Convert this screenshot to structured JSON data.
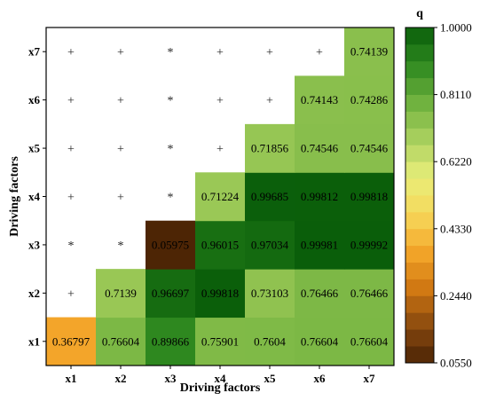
{
  "chart_data": {
    "type": "heatmap",
    "title": "",
    "xlabel": "Driving factors",
    "ylabel": "Driving factors",
    "x_categories": [
      "x1",
      "x2",
      "x3",
      "x4",
      "x5",
      "x6",
      "x7"
    ],
    "y_categories": [
      "x1",
      "x2",
      "x3",
      "x4",
      "x5",
      "x6",
      "x7"
    ],
    "rows": [
      {
        "y": "x1",
        "cells": [
          {
            "label": "0.36797",
            "value": 0.36797
          },
          {
            "label": "0.76604",
            "value": 0.76604
          },
          {
            "label": "0.89866",
            "value": 0.89866
          },
          {
            "label": "0.75901",
            "value": 0.75901
          },
          {
            "label": "0.7604",
            "value": 0.7604
          },
          {
            "label": "0.76604",
            "value": 0.76604
          },
          {
            "label": "0.76604",
            "value": 0.76604
          }
        ]
      },
      {
        "y": "x2",
        "cells": [
          {
            "symbol": "+"
          },
          {
            "label": "0.7139",
            "value": 0.7139
          },
          {
            "label": "0.96697",
            "value": 0.96697
          },
          {
            "label": "0.99818",
            "value": 0.99818
          },
          {
            "label": "0.73103",
            "value": 0.73103
          },
          {
            "label": "0.76466",
            "value": 0.76466
          },
          {
            "label": "0.76466",
            "value": 0.76466
          }
        ]
      },
      {
        "y": "x3",
        "cells": [
          {
            "symbol": "*"
          },
          {
            "symbol": "*"
          },
          {
            "label": "0.05975",
            "value": 0.05975
          },
          {
            "label": "0.96015",
            "value": 0.96015
          },
          {
            "label": "0.97034",
            "value": 0.97034
          },
          {
            "label": "0.99981",
            "value": 0.99981
          },
          {
            "label": "0.99992",
            "value": 0.99992
          }
        ]
      },
      {
        "y": "x4",
        "cells": [
          {
            "symbol": "+"
          },
          {
            "symbol": "+"
          },
          {
            "symbol": "*"
          },
          {
            "label": "0.71224",
            "value": 0.71224
          },
          {
            "label": "0.99685",
            "value": 0.99685
          },
          {
            "label": "0.99812",
            "value": 0.99812
          },
          {
            "label": "0.99818",
            "value": 0.99818
          }
        ]
      },
      {
        "y": "x5",
        "cells": [
          {
            "symbol": "+"
          },
          {
            "symbol": "+"
          },
          {
            "symbol": "*"
          },
          {
            "symbol": "+"
          },
          {
            "label": "0.71856",
            "value": 0.71856
          },
          {
            "label": "0.74546",
            "value": 0.74546
          },
          {
            "label": "0.74546",
            "value": 0.74546
          }
        ]
      },
      {
        "y": "x6",
        "cells": [
          {
            "symbol": "+"
          },
          {
            "symbol": "+"
          },
          {
            "symbol": "*"
          },
          {
            "symbol": "+"
          },
          {
            "symbol": "+"
          },
          {
            "label": "0.74143",
            "value": 0.74143
          },
          {
            "label": "0.74286",
            "value": 0.74286
          }
        ]
      },
      {
        "y": "x7",
        "cells": [
          {
            "symbol": "+"
          },
          {
            "symbol": "+"
          },
          {
            "symbol": "*"
          },
          {
            "symbol": "+"
          },
          {
            "symbol": "+"
          },
          {
            "symbol": "+"
          },
          {
            "label": "0.74139",
            "value": 0.74139
          }
        ]
      }
    ],
    "colorbar": {
      "title": "q",
      "min": 0.055,
      "max": 1.0,
      "ticks": [
        "0.0550",
        "0.2440",
        "0.4330",
        "0.6220",
        "0.8110",
        "1.0000"
      ],
      "tick_values": [
        0.055,
        0.244,
        0.433,
        0.622,
        0.811,
        1.0
      ],
      "color_stops": [
        "#4a2305",
        "#8a4a0f",
        "#d07812",
        "#f4a62a",
        "#f6d85a",
        "#e8ee7a",
        "#a9d05e",
        "#6fb13e",
        "#2f8a20",
        "#0a5e0a"
      ]
    }
  }
}
